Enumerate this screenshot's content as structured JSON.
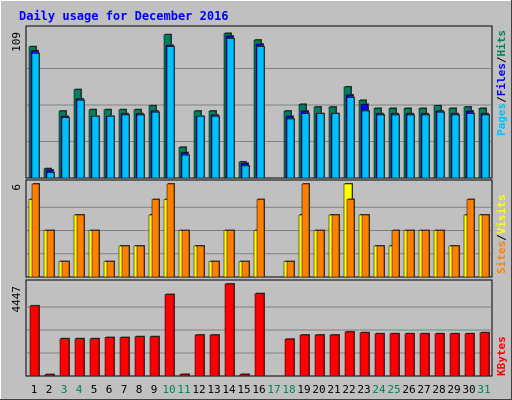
{
  "chart_data": [
    {
      "type": "bar",
      "title": "Daily usage for December 2016",
      "y_axis_max_label": "109",
      "legend": [
        "Pages",
        "/",
        "Files",
        "/",
        "Hits"
      ],
      "colors": {
        "hits": "#00805c",
        "files": "#0000ff",
        "pages": "#00c0ff"
      },
      "categories": [
        1,
        2,
        3,
        4,
        5,
        6,
        7,
        8,
        9,
        10,
        11,
        12,
        13,
        14,
        15,
        16,
        17,
        18,
        19,
        20,
        21,
        22,
        23,
        24,
        25,
        26,
        27,
        28,
        29,
        30,
        31
      ],
      "series": [
        {
          "name": "Hits",
          "values": [
            98,
            7,
            50,
            66,
            51,
            51,
            51,
            51,
            54,
            107,
            23,
            50,
            50,
            108,
            12,
            103,
            0,
            50,
            55,
            53,
            53,
            68,
            58,
            52,
            52,
            52,
            52,
            54,
            52,
            53,
            52
          ]
        },
        {
          "name": "Files",
          "values": [
            95,
            6,
            46,
            59,
            46,
            46,
            48,
            48,
            50,
            99,
            19,
            46,
            47,
            106,
            11,
            100,
            0,
            46,
            50,
            48,
            48,
            62,
            55,
            48,
            48,
            48,
            48,
            50,
            48,
            50,
            48
          ]
        },
        {
          "name": "Pages",
          "values": [
            93,
            4,
            45,
            58,
            46,
            46,
            47,
            47,
            49,
            98,
            17,
            46,
            46,
            104,
            9,
            98,
            0,
            44,
            48,
            48,
            48,
            60,
            50,
            47,
            47,
            47,
            47,
            49,
            47,
            48,
            47
          ]
        }
      ],
      "ylim": [
        0,
        109
      ]
    },
    {
      "type": "bar",
      "y_axis_max_label": "6",
      "legend": [
        "Sites",
        "/",
        "Visits"
      ],
      "colors": {
        "visits": "#ffff00",
        "sites": "#ff8000"
      },
      "categories": [
        1,
        2,
        3,
        4,
        5,
        6,
        7,
        8,
        9,
        10,
        11,
        12,
        13,
        14,
        15,
        16,
        17,
        18,
        19,
        20,
        21,
        22,
        23,
        24,
        25,
        26,
        27,
        28,
        29,
        30,
        31
      ],
      "series": [
        {
          "name": "Visits",
          "values": [
            5,
            3,
            1,
            4,
            3,
            1,
            2,
            2,
            4,
            5,
            3,
            2,
            1,
            3,
            1,
            3,
            0,
            1,
            4,
            3,
            4,
            6,
            4,
            2,
            2,
            3,
            3,
            3,
            2,
            4,
            4
          ]
        },
        {
          "name": "Sites",
          "values": [
            6,
            3,
            1,
            4,
            3,
            1,
            2,
            2,
            5,
            6,
            3,
            2,
            1,
            3,
            1,
            5,
            0,
            1,
            6,
            3,
            4,
            5,
            4,
            2,
            3,
            3,
            3,
            3,
            2,
            5,
            4
          ]
        }
      ],
      "ylim": [
        0,
        6
      ]
    },
    {
      "type": "bar",
      "y_axis_max_label": "4447",
      "legend": [
        "KBytes"
      ],
      "colors": {
        "kbytes": "#ff0000"
      },
      "categories": [
        1,
        2,
        3,
        4,
        5,
        6,
        7,
        8,
        9,
        10,
        11,
        12,
        13,
        14,
        15,
        16,
        17,
        18,
        19,
        20,
        21,
        22,
        23,
        24,
        25,
        26,
        27,
        28,
        29,
        30,
        31
      ],
      "series": [
        {
          "name": "KBytes",
          "values": [
            3390,
            70,
            1800,
            1800,
            1800,
            1860,
            1860,
            1900,
            1900,
            3940,
            80,
            1980,
            1980,
            4447,
            80,
            3980,
            0,
            1780,
            1980,
            1980,
            1980,
            2130,
            2090,
            2040,
            2040,
            2040,
            2040,
            2040,
            2040,
            2040,
            2090
          ]
        }
      ],
      "ylim": [
        0,
        4447
      ]
    }
  ],
  "x_labels": [
    {
      "text": "1",
      "color": "#000000"
    },
    {
      "text": "2",
      "color": "#000000"
    },
    {
      "text": "3",
      "color": "#00805c"
    },
    {
      "text": "4",
      "color": "#00805c"
    },
    {
      "text": "5",
      "color": "#000000"
    },
    {
      "text": "6",
      "color": "#000000"
    },
    {
      "text": "7",
      "color": "#000000"
    },
    {
      "text": "8",
      "color": "#000000"
    },
    {
      "text": "9",
      "color": "#000000"
    },
    {
      "text": "10",
      "color": "#00805c"
    },
    {
      "text": "11",
      "color": "#00805c"
    },
    {
      "text": "12",
      "color": "#000000"
    },
    {
      "text": "13",
      "color": "#000000"
    },
    {
      "text": "14",
      "color": "#000000"
    },
    {
      "text": "15",
      "color": "#000000"
    },
    {
      "text": "16",
      "color": "#000000"
    },
    {
      "text": "17",
      "color": "#00805c"
    },
    {
      "text": "18",
      "color": "#00805c"
    },
    {
      "text": "19",
      "color": "#000000"
    },
    {
      "text": "20",
      "color": "#000000"
    },
    {
      "text": "21",
      "color": "#000000"
    },
    {
      "text": "22",
      "color": "#000000"
    },
    {
      "text": "23",
      "color": "#000000"
    },
    {
      "text": "24",
      "color": "#00805c"
    },
    {
      "text": "25",
      "color": "#00805c"
    },
    {
      "text": "26",
      "color": "#000000"
    },
    {
      "text": "27",
      "color": "#000000"
    },
    {
      "text": "28",
      "color": "#000000"
    },
    {
      "text": "29",
      "color": "#000000"
    },
    {
      "text": "30",
      "color": "#000000"
    },
    {
      "text": "31",
      "color": "#00805c"
    }
  ],
  "palette": {
    "background": "#c0c0c0",
    "title": "#0000ff",
    "grid": "#808080",
    "bar_shadow": "#404040"
  }
}
